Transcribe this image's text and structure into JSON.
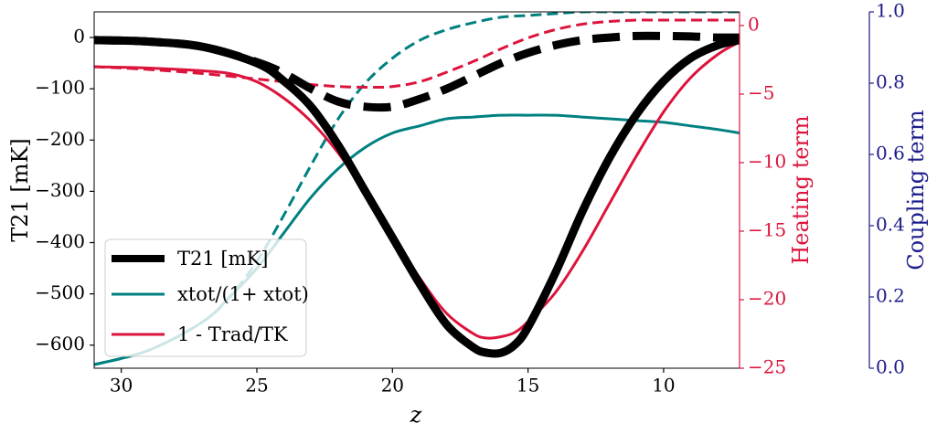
{
  "chart_data": {
    "type": "line",
    "xlabel": "z",
    "ylabel_left": "T21 [mK]",
    "ylabel_right1": "Heating term",
    "ylabel_right2": "Coupling term",
    "xlim": [
      31,
      7.2
    ],
    "ylim_left": [
      -645,
      50
    ],
    "ylim_heating": [
      -25,
      1
    ],
    "ylim_coupling": [
      0,
      1
    ],
    "xticks": [
      30,
      25,
      20,
      15,
      10
    ],
    "yticks_left": [
      0,
      -100,
      -200,
      -300,
      -400,
      -500,
      -600
    ],
    "yticks_heating": [
      0,
      -5,
      -10,
      -15,
      -20,
      -25
    ],
    "yticks_coupling": [
      1.0,
      0.8,
      0.6,
      0.4,
      0.2,
      0.0
    ],
    "ytick_labels_left": [
      "0",
      "−100",
      "−200",
      "−300",
      "−400",
      "−500",
      "−600"
    ],
    "ytick_labels_heating": [
      "0",
      "−5",
      "−10",
      "−15",
      "−20",
      "−25"
    ],
    "ytick_labels_coupling": [
      "1.0",
      "0.8",
      "0.6",
      "0.4",
      "0.2",
      "0.0"
    ],
    "colors": {
      "t21": "#000000",
      "coupling": "#008080",
      "heating": "#dc143c",
      "axis3": "#1c1c8c"
    },
    "series": [
      {
        "name": "T21 [mK]",
        "axis": "left",
        "style": "solid",
        "x": [
          31,
          29,
          27,
          25,
          24,
          23,
          22,
          21,
          20,
          19,
          18,
          17,
          16.5,
          16,
          15.5,
          15,
          14,
          13,
          12,
          11,
          10,
          9,
          8,
          7.2
        ],
        "y": [
          -5,
          -8,
          -18,
          -50,
          -85,
          -135,
          -210,
          -300,
          -390,
          -480,
          -560,
          -605,
          -615,
          -615,
          -600,
          -565,
          -460,
          -340,
          -235,
          -150,
          -85,
          -40,
          -15,
          -5
        ]
      },
      {
        "name": "T21 [mK]",
        "axis": "left",
        "style": "dashed",
        "x": [
          31,
          29,
          27,
          25,
          24,
          23,
          22,
          21,
          20,
          19,
          18,
          17,
          16,
          15,
          14,
          13,
          12,
          11,
          10,
          9,
          8,
          7.2
        ],
        "y": [
          -5,
          -8,
          -18,
          -48,
          -70,
          -100,
          -125,
          -135,
          -135,
          -120,
          -100,
          -75,
          -50,
          -30,
          -15,
          -5,
          0,
          3,
          3,
          2,
          0,
          0
        ]
      },
      {
        "name": "xtot/(1+ xtot)",
        "axis": "coupling",
        "style": "solid",
        "x": [
          31,
          29,
          27,
          26,
          25,
          24,
          23,
          22,
          21,
          20,
          19,
          18,
          17,
          16,
          15,
          14,
          13,
          12,
          11,
          10,
          9,
          8,
          7.2
        ],
        "y": [
          0.01,
          0.05,
          0.13,
          0.2,
          0.28,
          0.38,
          0.48,
          0.56,
          0.62,
          0.66,
          0.68,
          0.7,
          0.705,
          0.71,
          0.71,
          0.71,
          0.705,
          0.7,
          0.695,
          0.69,
          0.68,
          0.67,
          0.66
        ]
      },
      {
        "name": "xtot/(1+ xtot)",
        "axis": "coupling",
        "style": "dashed",
        "x": [
          31,
          29,
          27,
          26,
          25,
          24,
          23,
          22,
          21,
          20,
          19,
          18,
          17,
          16,
          15,
          14,
          13,
          12,
          11,
          10,
          9,
          8,
          7.2
        ],
        "y": [
          0.01,
          0.05,
          0.13,
          0.2,
          0.3,
          0.43,
          0.57,
          0.7,
          0.8,
          0.87,
          0.92,
          0.95,
          0.97,
          0.985,
          0.99,
          0.995,
          1.0,
          1.0,
          1.0,
          1.0,
          1.0,
          1.0,
          1.0
        ]
      },
      {
        "name": "1 - Trad/TK",
        "axis": "heating",
        "style": "solid",
        "x": [
          31,
          29,
          27,
          26,
          25,
          24,
          23,
          22,
          21,
          20,
          19,
          18,
          17,
          16.5,
          16,
          15.5,
          15,
          14,
          13,
          12,
          11,
          10,
          9,
          8,
          7.2
        ],
        "y": [
          -3,
          -3.1,
          -3.3,
          -3.5,
          -4.1,
          -5.3,
          -7.0,
          -9.3,
          -12.2,
          -15.3,
          -18.4,
          -21.0,
          -22.5,
          -22.8,
          -22.7,
          -22.4,
          -21.6,
          -19.5,
          -16.5,
          -13.0,
          -9.5,
          -6.3,
          -3.8,
          -2.1,
          -1.2
        ]
      },
      {
        "name": "1 - Trad/TK",
        "axis": "heating",
        "style": "dashed",
        "x": [
          31,
          29,
          27,
          25,
          24,
          23,
          22,
          21,
          20,
          19,
          18,
          17,
          16,
          15,
          14,
          13,
          12,
          11,
          10,
          9,
          8,
          7.2
        ],
        "y": [
          -3,
          -3.2,
          -3.5,
          -3.9,
          -4.1,
          -4.3,
          -4.45,
          -4.5,
          -4.45,
          -4.1,
          -3.4,
          -2.6,
          -1.7,
          -0.9,
          -0.3,
          0.1,
          0.3,
          0.4,
          0.4,
          0.4,
          0.4,
          0.4
        ]
      }
    ],
    "legend": {
      "position": "lower-left",
      "entries": [
        {
          "label": "T21 [mK]",
          "color": "#000000"
        },
        {
          "label": "xtot/(1+ xtot)",
          "color": "#008080"
        },
        {
          "label": "1 - Trad/TK",
          "color": "#dc143c"
        }
      ]
    }
  }
}
